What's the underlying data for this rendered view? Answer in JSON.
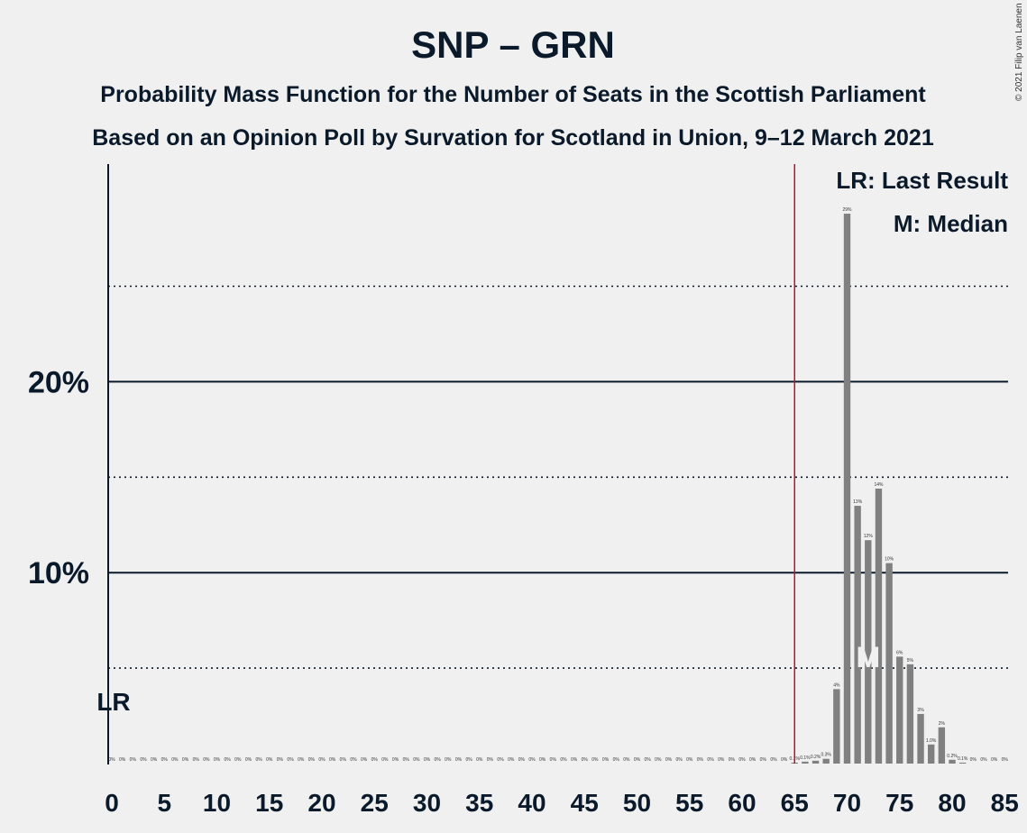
{
  "chart_data": {
    "type": "bar",
    "title": "SNP – GRN",
    "subtitle_1": "Probability Mass Function for the Number of Seats in the Scottish Parliament",
    "subtitle_2": "Based on an Opinion Poll by Survation for Scotland in Union, 9–12 March 2021",
    "copyright": "© 2021 Filip van Laenen",
    "xlim": [
      0,
      85
    ],
    "ylim": [
      0,
      31
    ],
    "x_ticks": [
      "0",
      "5",
      "10",
      "15",
      "20",
      "25",
      "30",
      "35",
      "40",
      "45",
      "50",
      "55",
      "60",
      "65",
      "70",
      "75",
      "80",
      "85"
    ],
    "y_ticks": [
      {
        "value": 10,
        "label": "10%"
      },
      {
        "value": 20,
        "label": "20%"
      }
    ],
    "dotted_gridlines": [
      5,
      15,
      25
    ],
    "solid_gridlines": [
      10,
      20
    ],
    "bar_color": "#808080",
    "last_result": {
      "seats": 65,
      "color": "#c0102a",
      "label": "LR"
    },
    "median": {
      "seats": 72,
      "label": "M"
    },
    "legend": {
      "last_result": "LR: Last Result",
      "median": "M: Median"
    },
    "seats": [
      0,
      1,
      2,
      3,
      4,
      5,
      6,
      7,
      8,
      9,
      10,
      11,
      12,
      13,
      14,
      15,
      16,
      17,
      18,
      19,
      20,
      21,
      22,
      23,
      24,
      25,
      26,
      27,
      28,
      29,
      30,
      31,
      32,
      33,
      34,
      35,
      36,
      37,
      38,
      39,
      40,
      41,
      42,
      43,
      44,
      45,
      46,
      47,
      48,
      49,
      50,
      51,
      52,
      53,
      54,
      55,
      56,
      57,
      58,
      59,
      60,
      61,
      62,
      63,
      64,
      65,
      66,
      67,
      68,
      69,
      70,
      71,
      72,
      73,
      74,
      75,
      76,
      77,
      78,
      79,
      80,
      81,
      82,
      83,
      84,
      85
    ],
    "values": [
      0,
      0,
      0,
      0,
      0,
      0,
      0,
      0,
      0,
      0,
      0,
      0,
      0,
      0,
      0,
      0,
      0,
      0,
      0,
      0,
      0,
      0,
      0,
      0,
      0,
      0,
      0,
      0,
      0,
      0,
      0,
      0,
      0,
      0,
      0,
      0,
      0,
      0,
      0,
      0,
      0,
      0,
      0,
      0,
      0,
      0,
      0,
      0,
      0,
      0,
      0,
      0,
      0,
      0,
      0,
      0,
      0,
      0,
      0,
      0,
      0,
      0,
      0,
      0,
      0,
      0.05,
      0.1,
      0.15,
      0.25,
      3.9,
      28.8,
      13.5,
      11.7,
      14.4,
      10.5,
      5.6,
      5.2,
      2.6,
      1.0,
      1.9,
      0.2,
      0.05,
      0,
      0,
      0,
      0
    ],
    "value_labels": [
      "0%",
      "0%",
      "0%",
      "0%",
      "0%",
      "0%",
      "0%",
      "0%",
      "0%",
      "0%",
      "0%",
      "0%",
      "0%",
      "0%",
      "0%",
      "0%",
      "0%",
      "0%",
      "0%",
      "0%",
      "0%",
      "0%",
      "0%",
      "0%",
      "0%",
      "0%",
      "0%",
      "0%",
      "0%",
      "0%",
      "0%",
      "0%",
      "0%",
      "0%",
      "0%",
      "0%",
      "0%",
      "0%",
      "0%",
      "0%",
      "0%",
      "0%",
      "0%",
      "0%",
      "0%",
      "0%",
      "0%",
      "0%",
      "0%",
      "0%",
      "0%",
      "0%",
      "0%",
      "0%",
      "0%",
      "0%",
      "0%",
      "0%",
      "0%",
      "0%",
      "0%",
      "0%",
      "0%",
      "0%",
      "0%",
      "0.1%",
      "0.1%",
      "0.2%",
      "0.3%",
      "4%",
      "29%",
      "13%",
      "12%",
      "14%",
      "10%",
      "6%",
      "5%",
      "3%",
      "1.0%",
      "2%",
      "0.2%",
      "0.1%",
      "0%",
      "0%",
      "0%",
      "0%"
    ]
  }
}
